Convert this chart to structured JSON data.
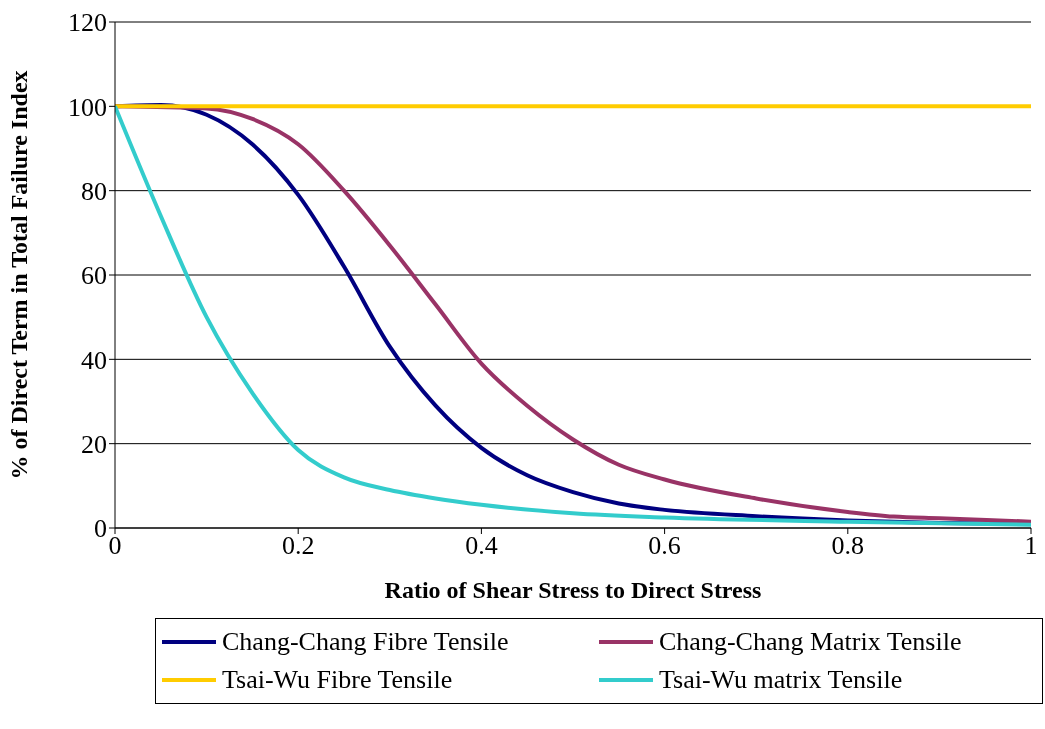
{
  "chart_data": {
    "type": "line",
    "xlabel": "Ratio of Shear Stress to Direct Stress",
    "ylabel": "% of Direct Term in Total Failure Index",
    "xlim": [
      0,
      1
    ],
    "xticks": [
      0,
      0.2,
      0.4,
      0.6,
      0.8,
      1
    ],
    "ylim": [
      0,
      120
    ],
    "yticks": [
      0,
      20,
      40,
      60,
      80,
      100,
      120
    ],
    "grid": "y",
    "legend": "bottom",
    "marker": "none",
    "line_style": "solid",
    "series": [
      {
        "name": "Chang-Chang Fibre Tensile",
        "color": "#000080",
        "x": [
          0,
          0.05,
          0.1,
          0.15,
          0.2,
          0.25,
          0.3,
          0.35,
          0.4,
          0.45,
          0.5,
          0.55,
          0.6,
          0.7,
          0.8,
          0.9,
          1
        ],
        "values": [
          100,
          100.3,
          98,
          91,
          79,
          62,
          43,
          29,
          19,
          12.5,
          8.5,
          5.8,
          4.3,
          2.8,
          1.8,
          1.2,
          1
        ]
      },
      {
        "name": "Chang-Chang Matrix Tensile",
        "color": "#993366",
        "x": [
          0,
          0.1,
          0.15,
          0.2,
          0.25,
          0.3,
          0.35,
          0.4,
          0.45,
          0.5,
          0.55,
          0.6,
          0.7,
          0.8,
          0.85,
          0.9,
          1
        ],
        "values": [
          100,
          99.5,
          97,
          91,
          80,
          67,
          53,
          39,
          29,
          21,
          15,
          11.5,
          7,
          3.8,
          2.7,
          2.3,
          1.5
        ]
      },
      {
        "name": "Tsai-Wu Fibre Tensile",
        "color": "#ffcc00",
        "x": [
          0,
          0.5,
          1
        ],
        "values": [
          100,
          100,
          100
        ]
      },
      {
        "name": "Tsai-Wu matrix Tensile",
        "color": "#33cccc",
        "x": [
          0,
          0.05,
          0.1,
          0.15,
          0.2,
          0.25,
          0.3,
          0.35,
          0.4,
          0.5,
          0.6,
          0.8,
          1
        ],
        "values": [
          100,
          74,
          50,
          32,
          18.5,
          12,
          9,
          7,
          5.5,
          3.5,
          2.5,
          1.5,
          0.8
        ]
      }
    ]
  }
}
